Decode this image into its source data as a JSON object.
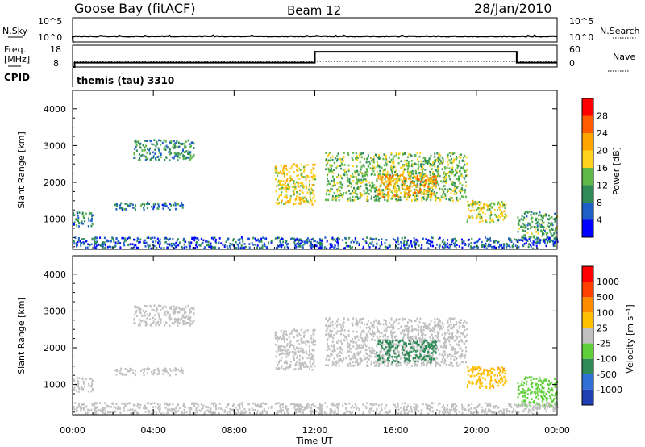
{
  "header": {
    "station": "Goose Bay (fitACF)",
    "beam": "Beam 12",
    "date": "28/Jan/2010"
  },
  "noise_panel": {
    "left_label": "N.Sky",
    "left_top_tick": "10^5",
    "left_bottom_tick": "10^0",
    "right_label": "N.Search",
    "right_top_tick": "10^5",
    "right_bottom_tick": "10^0"
  },
  "freq_panel": {
    "left_label_1": "Freq.",
    "left_label_2": "[MHz]",
    "left_top_tick": "18",
    "left_bottom_tick": "8",
    "right_label": "Nave",
    "right_top_tick": "60",
    "right_bottom_tick": "0",
    "cpid_label": "CPID",
    "cpid_text": "themis (tau) 3310"
  },
  "power_panel": {
    "ylabel": "Slant Range [km]",
    "yticks": [
      "1000",
      "2000",
      "3000",
      "4000"
    ],
    "colorbar_label": "Power [dB]",
    "colorbar_ticks": [
      "4",
      "8",
      "12",
      "16",
      "20",
      "24",
      "28"
    ],
    "colorbar_colors": [
      "#0000ff",
      "#1f5ec8",
      "#2e8b57",
      "#5fb84a",
      "#ffd21f",
      "#ffa500",
      "#ff5a00",
      "#ff0000"
    ]
  },
  "velocity_panel": {
    "ylabel": "Slant Range [km]",
    "yticks": [
      "1000",
      "2000",
      "3000",
      "4000"
    ],
    "colorbar_label": "Velocity [m s⁻¹]",
    "colorbar_ticks": [
      "1000",
      "500",
      "100",
      "25",
      "-25",
      "-100",
      "-500",
      "-1000"
    ],
    "colorbar_colors": [
      "#1f3fb4",
      "#2f6fd6",
      "#2e8b57",
      "#5fd03a",
      "#c0c0c0",
      "#ffc000",
      "#ff8c00",
      "#ff4000",
      "#ff0000"
    ]
  },
  "x_axis": {
    "xlabel": "Time UT",
    "ticks": [
      "00:00",
      "04:00",
      "08:00",
      "12:00",
      "16:00",
      "20:00",
      "00:00"
    ]
  },
  "chart_data": [
    {
      "type": "line",
      "title": "N.Sky / N.Search",
      "x": [
        0,
        24
      ],
      "yscale": "log",
      "ylim": [
        1,
        100000
      ]
    },
    {
      "type": "line",
      "title": "Freq. / Nave",
      "x": [
        0,
        0.1,
        12,
        22,
        24
      ],
      "freq_mhz": [
        8,
        10,
        15,
        10,
        10
      ],
      "ylim": [
        8,
        18
      ]
    },
    {
      "type": "heatmap",
      "quantity": "Power [dB]",
      "xlim": [
        0,
        24
      ],
      "ylim": [
        180,
        4500
      ],
      "regions": [
        {
          "t": [
            0,
            1
          ],
          "range": [
            800,
            1200
          ],
          "level": 8
        },
        {
          "t": [
            2,
            5.5
          ],
          "range": [
            1250,
            1450
          ],
          "level": 8
        },
        {
          "t": [
            3,
            6
          ],
          "range": [
            2600,
            3150
          ],
          "level": 10
        },
        {
          "t": [
            10,
            12
          ],
          "range": [
            1400,
            2500
          ],
          "level": 18
        },
        {
          "t": [
            12.5,
            19.5
          ],
          "range": [
            1500,
            2800
          ],
          "level": 14
        },
        {
          "t": [
            15,
            18
          ],
          "range": [
            1600,
            2200
          ],
          "level": 22
        },
        {
          "t": [
            19.5,
            21.5
          ],
          "range": [
            900,
            1500
          ],
          "level": 16
        },
        {
          "t": [
            22,
            24
          ],
          "range": [
            400,
            1200
          ],
          "level": 12
        },
        {
          "t": [
            0,
            24
          ],
          "range": [
            200,
            500
          ],
          "level": 6
        }
      ]
    },
    {
      "type": "heatmap",
      "quantity": "Velocity [m s-1]",
      "xlim": [
        0,
        24
      ],
      "ylim": [
        180,
        4500
      ],
      "regions": [
        {
          "t": [
            0,
            1
          ],
          "range": [
            800,
            1200
          ],
          "velocity": 0
        },
        {
          "t": [
            2,
            5.5
          ],
          "range": [
            1250,
            1450
          ],
          "velocity": 0
        },
        {
          "t": [
            3,
            6
          ],
          "range": [
            2600,
            3150
          ],
          "velocity": 0
        },
        {
          "t": [
            10,
            12
          ],
          "range": [
            1400,
            2500
          ],
          "velocity": 0
        },
        {
          "t": [
            12.5,
            19.5
          ],
          "range": [
            1500,
            2800
          ],
          "velocity": 0
        },
        {
          "t": [
            19.5,
            21
          ],
          "range": [
            900,
            1400
          ],
          "velocity": 150
        },
        {
          "t": [
            22,
            24
          ],
          "range": [
            400,
            1200
          ],
          "velocity": -80
        },
        {
          "t": [
            0,
            24
          ],
          "range": [
            200,
            500
          ],
          "velocity": 60
        }
      ]
    }
  ]
}
